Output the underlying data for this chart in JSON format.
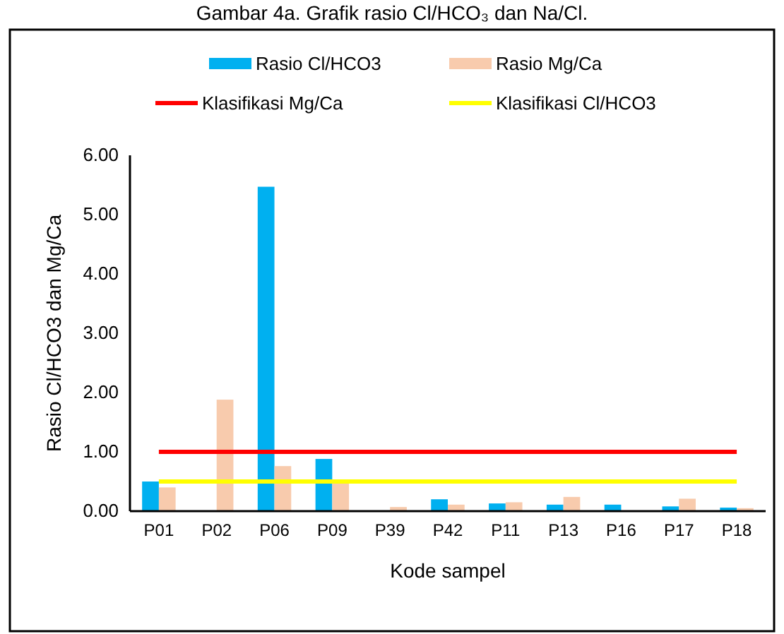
{
  "chart_data": {
    "type": "bar",
    "title": "Gambar 4a. Grafik rasio Cl/HCO₃ dan Na/Cl.",
    "xlabel": "Kode sampel",
    "ylabel": "Rasio Cl/HCO3 dan Mg/Ca",
    "categories": [
      "P01",
      "P02",
      "P06",
      "P09",
      "P39",
      "P42",
      "P11",
      "P13",
      "P16",
      "P17",
      "P18"
    ],
    "series": [
      {
        "name": "Rasio Cl/HCO3",
        "color": "#00b0f0",
        "values": [
          0.5,
          null,
          5.47,
          0.88,
          null,
          0.2,
          0.13,
          0.11,
          0.11,
          0.08,
          0.06
        ]
      },
      {
        "name": "Rasio Mg/Ca",
        "color": "#f8cbad",
        "values": [
          0.4,
          1.88,
          0.76,
          0.5,
          0.07,
          0.11,
          0.15,
          0.24,
          null,
          0.21,
          0.05
        ]
      },
      {
        "name": "Klasifikasi Mg/Ca",
        "type": "line",
        "color": "#ff0000",
        "values": [
          1,
          1,
          1,
          1,
          1,
          1,
          1,
          1,
          1,
          1,
          1
        ]
      },
      {
        "name": "Klasifikasi Cl/HCO3",
        "type": "line",
        "color": "#ffff00",
        "values": [
          0.5,
          0.5,
          0.5,
          0.5,
          0.5,
          0.5,
          0.5,
          0.5,
          0.5,
          0.5,
          0.5
        ]
      }
    ],
    "ylim": [
      0,
      6
    ],
    "yticks": [
      {
        "value": 0,
        "label": "0.00"
      },
      {
        "value": 1,
        "label": "1.00"
      },
      {
        "value": 2,
        "label": "2.00"
      },
      {
        "value": 3,
        "label": "3.00"
      },
      {
        "value": 4,
        "label": "4.00"
      },
      {
        "value": 5,
        "label": "5.00"
      },
      {
        "value": 6,
        "label": "6.00"
      }
    ],
    "grid": false,
    "legend": "top"
  }
}
